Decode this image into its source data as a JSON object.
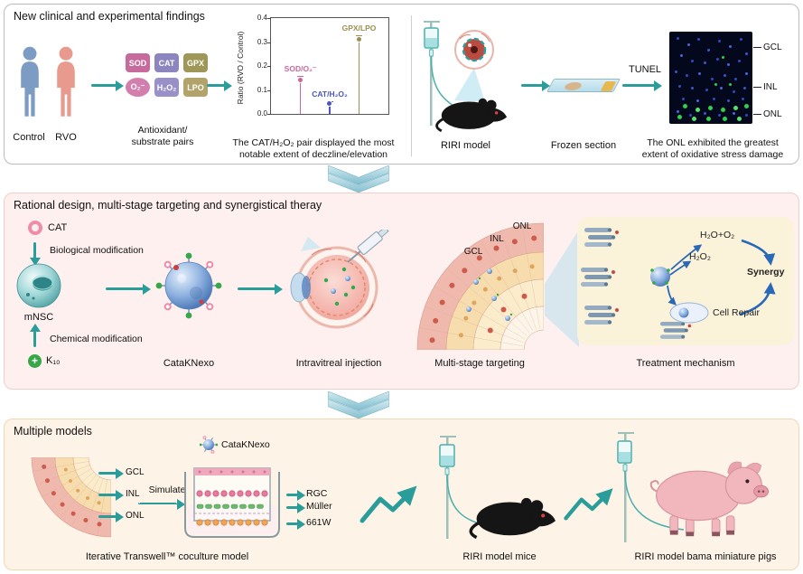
{
  "panel1": {
    "title": "New clinical and experimental findings",
    "control_label": "Control",
    "rvo_label": "RVO",
    "pairs": {
      "items": [
        {
          "label": "SOD"
        },
        {
          "label": "CAT"
        },
        {
          "label": "GPX"
        },
        {
          "label": "O₂⁻"
        },
        {
          "label": "H₂O₂"
        },
        {
          "label": "LPO"
        }
      ],
      "caption_line1": "Antioxidant/",
      "caption_line2": "substrate pairs"
    },
    "chart_caption_line1": "The CAT/H₂O₂ pair displayed the most",
    "chart_caption_line2": "notable extent of deczline/elevation",
    "riri_label": "RIRI model",
    "frozen_label": "Frozen section",
    "tunel_label": "TUNEL",
    "micrograph": {
      "labels": [
        "GCL",
        "INL",
        "ONL"
      ],
      "caption_line1": "The ONL exhibited the greatest",
      "caption_line2": "extent of oxidative stress damage"
    }
  },
  "chart_data": {
    "type": "scatter",
    "title": "",
    "ylabel": "Ratio (RVO / Control)",
    "ylim": [
      0,
      0.4
    ],
    "yticks": [
      0,
      0.1,
      0.2,
      0.3,
      0.4
    ],
    "series": [
      {
        "name": "SOD/O₂⁻",
        "value": 0.14,
        "error": 0.018,
        "color": "#c9679c"
      },
      {
        "name": "CAT/H₂O₂",
        "value": 0.04,
        "error": 0.012,
        "color": "#4a55c0"
      },
      {
        "name": "GPX/LPO",
        "value": 0.31,
        "error": 0.02,
        "color": "#9a9152"
      }
    ]
  },
  "panel2": {
    "title": "Rational design, multi-stage targeting and synergistical theray",
    "cat_label": "CAT",
    "bio_mod_label": "Biological modification",
    "mnsc_label": "mNSC",
    "chem_mod_label": "Chemical modification",
    "k10_label": "K₁₀",
    "catak_label": "CataKNexo",
    "injection_label": "Intravitreal injection",
    "fan_labels": [
      "ONL",
      "INL",
      "GCL"
    ],
    "targeting_label": "Multi-stage targeting",
    "mechanism": {
      "h2o_o2": "H₂O+O₂",
      "h2o2": "H₂O₂",
      "cell_repair": "Cell Repair",
      "synergy": "Synergy"
    },
    "mechanism_label": "Treatment mechanism"
  },
  "panel3": {
    "title": "Multiple models",
    "fan_labels": [
      "GCL",
      "INL",
      "ONL"
    ],
    "simulate_label": "Simulate",
    "catak_label": "CataKNexo",
    "well_labels": [
      "RGC",
      "Müller",
      "661W"
    ],
    "transwell_caption": "Iterative Transwell™ coculture model",
    "mice_label": "RIRI model mice",
    "pig_label": "RIRI model bama miniature pigs"
  }
}
